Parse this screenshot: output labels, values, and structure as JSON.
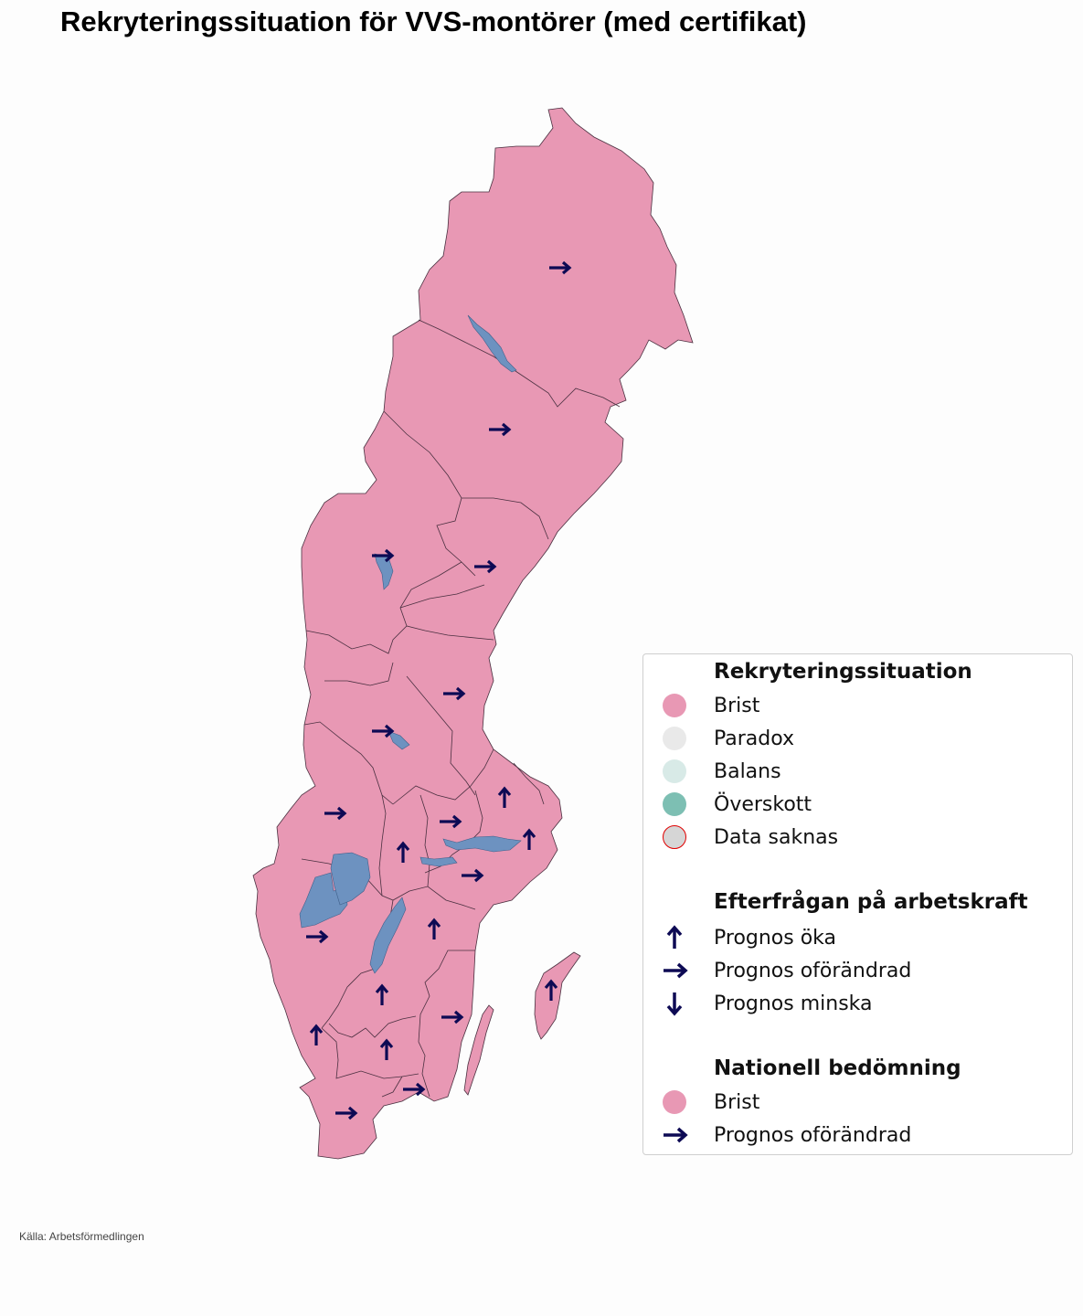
{
  "title": "Rekryteringssituation för VVS-montörer (med certifikat)",
  "source": "Källa: Arbetsförmedlingen",
  "colors": {
    "brist": "#e898b4",
    "paradox": "#e9e9e9",
    "balans": "#d8eae7",
    "overskott": "#7dbfb3",
    "data_saknas_fill": "#d6d6d6",
    "data_saknas_stroke": "#e00000",
    "water": "#6d92c0",
    "border": "#4a3040",
    "arrow": "#0d0a54"
  },
  "legend": {
    "section1": {
      "heading": "Rekryteringssituation",
      "items": [
        {
          "label": "Brist",
          "color": "#e898b4"
        },
        {
          "label": "Paradox",
          "color": "#e9e9e9"
        },
        {
          "label": "Balans",
          "color": "#d8eae7"
        },
        {
          "label": "Överskott",
          "color": "#7dbfb3"
        },
        {
          "label": "Data saknas",
          "color": "#d6d6d6"
        }
      ]
    },
    "section2": {
      "heading": "Efterfrågan på arbetskraft",
      "items": [
        {
          "label": "Prognos öka",
          "icon": "arrow-up-icon"
        },
        {
          "label": "Prognos oförändrad",
          "icon": "arrow-right-icon"
        },
        {
          "label": "Prognos minska",
          "icon": "arrow-down-icon"
        }
      ]
    },
    "section3": {
      "heading": "Nationell bedömning",
      "items": [
        {
          "label": "Brist",
          "color": "#e898b4"
        },
        {
          "label": "Prognos oförändrad",
          "icon": "arrow-right-icon"
        }
      ]
    }
  },
  "regions": [
    {
      "situation": "Brist",
      "forecast": "oförändrad"
    },
    {
      "situation": "Brist",
      "forecast": "oförändrad"
    },
    {
      "situation": "Brist",
      "forecast": "oförändrad"
    },
    {
      "situation": "Brist",
      "forecast": "oförändrad"
    },
    {
      "situation": "Brist",
      "forecast": "oförändrad"
    },
    {
      "situation": "Brist",
      "forecast": "oförändrad"
    },
    {
      "situation": "Brist",
      "forecast": "oförändrad"
    },
    {
      "situation": "Brist",
      "forecast": "öka"
    },
    {
      "situation": "Brist",
      "forecast": "oförändrad"
    },
    {
      "situation": "Brist",
      "forecast": "öka"
    },
    {
      "situation": "Brist",
      "forecast": "öka"
    },
    {
      "situation": "Brist",
      "forecast": "oförändrad"
    },
    {
      "situation": "Brist",
      "forecast": "oförändrad"
    },
    {
      "situation": "Brist",
      "forecast": "öka"
    },
    {
      "situation": "Brist",
      "forecast": "öka"
    },
    {
      "situation": "Brist",
      "forecast": "öka"
    },
    {
      "situation": "Brist",
      "forecast": "oförändrad"
    },
    {
      "situation": "Brist",
      "forecast": "öka"
    },
    {
      "situation": "Brist",
      "forecast": "öka"
    },
    {
      "situation": "Brist",
      "forecast": "oförändrad"
    },
    {
      "situation": "Brist",
      "forecast": "oförändrad"
    }
  ]
}
